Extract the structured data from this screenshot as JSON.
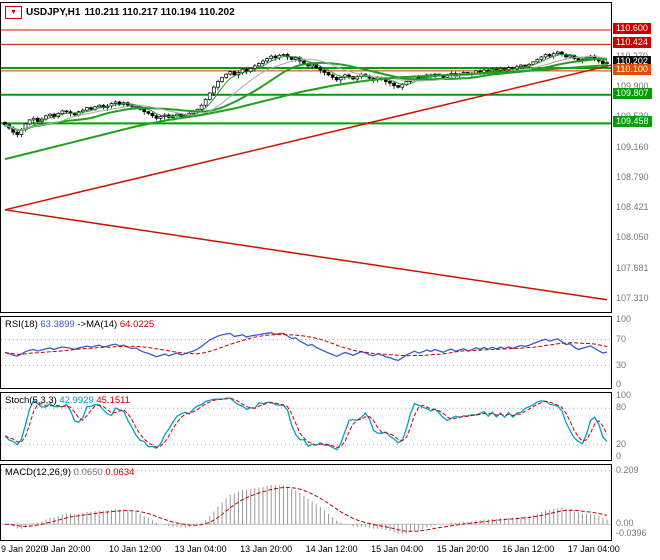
{
  "window": {
    "symbol": "USDJPY,H1",
    "ohlc": "110.211 110.217 110.194 110.202"
  },
  "panels": {
    "rsi": {
      "name": "RSI(18)",
      "value": "63.3899",
      "ma_name": "->MA(14)",
      "ma_value": "64.0225"
    },
    "stoch": {
      "name": "Stoch(5,3,3)",
      "value": "42.9929",
      "signal_value": "45.1511"
    },
    "macd": {
      "name": "MACD(12,26,9)",
      "value": "0.0650",
      "signal_value": "0.0634"
    }
  },
  "chart_data": {
    "type": "candlestick",
    "symbol": "USDJPY",
    "timeframe": "H1",
    "current_bar": {
      "open": 110.211,
      "high": 110.217,
      "low": 110.194,
      "close": 110.202
    },
    "price_axis": {
      "range": [
        107.15,
        110.93
      ],
      "gray_labels": [
        {
          "t": "110.270",
          "v": 110.27
        },
        {
          "t": "109.900",
          "v": 109.9
        },
        {
          "t": "109.530",
          "v": 109.53
        },
        {
          "t": "109.160",
          "v": 109.16
        },
        {
          "t": "108.790",
          "v": 108.79
        },
        {
          "t": "108.421",
          "v": 108.421
        },
        {
          "t": "108.050",
          "v": 108.05
        },
        {
          "t": "107.681",
          "v": 107.681
        },
        {
          "t": "107.310",
          "v": 107.31
        }
      ],
      "badges": [
        {
          "t": "110.600",
          "v": 110.6,
          "bg": "#c80000"
        },
        {
          "t": "110.424",
          "v": 110.424,
          "bg": "#c80000"
        },
        {
          "t": "110.202",
          "v": 110.202,
          "bg": "#111111"
        },
        {
          "t": "110.100",
          "v": 110.1,
          "bg": "#e05000"
        },
        {
          "t": "109.807",
          "v": 109.807,
          "bg": "#00a000"
        },
        {
          "t": "109.458",
          "v": 109.458,
          "bg": "#00a000"
        }
      ]
    },
    "time_labels": [
      {
        "t": "9 Jan 2020",
        "bar": 0
      },
      {
        "t": "9 Jan 20:00",
        "bar": 16
      },
      {
        "t": "10 Jan 12:00",
        "bar": 32
      },
      {
        "t": "13 Jan 04:00",
        "bar": 48
      },
      {
        "t": "13 Jan 20:00",
        "bar": 64
      },
      {
        "t": "14 Jan 12:00",
        "bar": 80
      },
      {
        "t": "15 Jan 04:00",
        "bar": 96
      },
      {
        "t": "15 Jan 20:00",
        "bar": 112
      },
      {
        "t": "16 Jan 12:00",
        "bar": 128
      },
      {
        "t": "17 Jan 04:00",
        "bar": 144
      }
    ],
    "candles": {
      "first_open": 109.47,
      "closes": [
        109.44,
        109.4,
        109.35,
        109.32,
        109.38,
        109.45,
        109.5,
        109.52,
        109.48,
        109.51,
        109.55,
        109.57,
        109.54,
        109.58,
        109.61,
        109.6,
        109.58,
        109.56,
        109.6,
        109.62,
        109.65,
        109.63,
        109.66,
        109.68,
        109.65,
        109.67,
        109.7,
        109.72,
        109.69,
        109.71,
        109.68,
        109.66,
        109.67,
        109.63,
        109.6,
        109.58,
        109.55,
        109.52,
        109.54,
        109.56,
        109.53,
        109.55,
        109.57,
        109.54,
        109.56,
        109.58,
        109.6,
        109.63,
        109.68,
        109.75,
        109.83,
        109.9,
        109.97,
        110.02,
        110.06,
        110.09,
        110.05,
        110.08,
        110.12,
        110.09,
        110.13,
        110.16,
        110.19,
        110.22,
        110.25,
        110.28,
        110.26,
        110.29,
        110.3,
        110.27,
        110.24,
        110.26,
        110.22,
        110.19,
        110.16,
        110.18,
        110.14,
        110.11,
        110.08,
        110.05,
        110.02,
        109.99,
        110.02,
        110.05,
        110.03,
        110.0,
        110.03,
        110.06,
        110.04,
        110.01,
        109.99,
        110.02,
        110.0,
        109.97,
        109.95,
        109.92,
        109.9,
        109.93,
        109.97,
        110.0,
        110.03,
        110.0,
        110.02,
        110.05,
        110.03,
        110.06,
        110.04,
        110.02,
        110.05,
        110.07,
        110.04,
        110.06,
        110.08,
        110.05,
        110.07,
        110.1,
        110.08,
        110.11,
        110.09,
        110.12,
        110.1,
        110.13,
        110.11,
        110.14,
        110.12,
        110.15,
        110.17,
        110.16,
        110.18,
        110.21,
        110.24,
        110.27,
        110.3,
        110.28,
        110.31,
        110.33,
        110.3,
        110.27,
        110.29,
        110.25,
        110.22,
        110.24,
        110.26,
        110.28,
        110.25,
        110.22,
        110.19,
        110.202
      ]
    },
    "levels": [
      {
        "price": 110.6,
        "color": "#cc1100",
        "width": 1
      },
      {
        "price": 110.424,
        "color": "#cc1100",
        "width": 1
      },
      {
        "price": 110.1,
        "color": "#dd3300",
        "width": 1
      },
      {
        "price": 110.135,
        "color": "#00a000",
        "width": 2
      },
      {
        "price": 109.807,
        "color": "#00a000",
        "width": 2
      },
      {
        "price": 109.458,
        "color": "#00a000",
        "width": 2
      }
    ],
    "trendlines": [
      {
        "from": [
          0,
          108.4
        ],
        "to": [
          148,
          110.17
        ],
        "color": "#cc1100",
        "width": 1.5
      },
      {
        "from": [
          0,
          108.4
        ],
        "to": [
          147,
          107.3
        ],
        "color": "#cc1100",
        "width": 1.5
      }
    ],
    "moving_averages": [
      {
        "kind": "sma",
        "window": 5,
        "color": "#1fa11f",
        "width": 1
      },
      {
        "kind": "sma",
        "window": 21,
        "color": "#1fa11f",
        "width": 2
      },
      {
        "kind": "sma",
        "window": 13,
        "color": "#a8a8a8",
        "width": 1
      },
      {
        "kind": "points",
        "color": "#1fa11f",
        "width": 2,
        "points": [
          [
            0,
            109.02
          ],
          [
            8,
            109.12
          ],
          [
            16,
            109.22
          ],
          [
            24,
            109.32
          ],
          [
            32,
            109.42
          ],
          [
            40,
            109.5
          ],
          [
            48,
            109.56
          ],
          [
            56,
            109.64
          ],
          [
            64,
            109.74
          ],
          [
            72,
            109.84
          ],
          [
            80,
            109.92
          ],
          [
            88,
            109.98
          ],
          [
            96,
            110.02
          ],
          [
            104,
            110.04
          ],
          [
            112,
            110.06
          ],
          [
            120,
            110.08
          ],
          [
            128,
            110.1
          ],
          [
            136,
            110.13
          ],
          [
            147,
            110.17
          ]
        ]
      }
    ],
    "indicators": {
      "rsi": {
        "period": 18,
        "ma_period": 14,
        "range": [
          0,
          100
        ],
        "levels": [
          70,
          30
        ],
        "axis": [
          {
            "t": "100",
            "v": 100
          },
          {
            "t": "70",
            "v": 70
          },
          {
            "t": "30",
            "v": 30
          },
          {
            "t": "0",
            "v": 0
          }
        ],
        "color": "#3b5bd0",
        "signal_color": "#cc0000"
      },
      "stoch": {
        "k": 5,
        "d": 3,
        "slowing": 3,
        "range": [
          0,
          100
        ],
        "levels": [
          80,
          20
        ],
        "axis": [
          {
            "t": "100",
            "v": 100
          },
          {
            "t": "80",
            "v": 80
          },
          {
            "t": "20",
            "v": 20
          },
          {
            "t": "0",
            "v": 0
          }
        ],
        "color": "#00a0c8",
        "signal_color": "#cc0000"
      },
      "macd": {
        "fast": 12,
        "slow": 26,
        "signal": 9,
        "range": [
          -0.05,
          0.22
        ],
        "levels": [
          0.209
        ],
        "axis": [
          {
            "t": "0.209",
            "v": 0.209
          },
          {
            "t": "0.00",
            "v": 0
          },
          {
            "t": "-0.0396",
            "v": -0.0396
          }
        ],
        "color": "#999999",
        "signal_color": "#cc0000"
      }
    }
  }
}
